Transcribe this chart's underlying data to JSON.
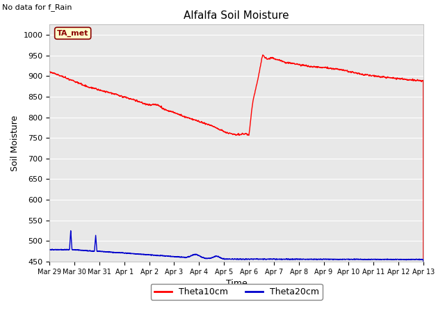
{
  "title": "Alfalfa Soil Moisture",
  "subtitle": "No data for f_Rain",
  "ylabel": "Soil Moisture",
  "xlabel": "Time",
  "legend_label1": "Theta10cm",
  "legend_label2": "Theta20cm",
  "tag_label": "TA_met",
  "fig_bg_color": "#ffffff",
  "plot_bg_color": "#e8e8e8",
  "ylim": [
    450,
    1025
  ],
  "yticks": [
    450,
    500,
    550,
    600,
    650,
    700,
    750,
    800,
    850,
    900,
    950,
    1000
  ],
  "color_red": "#ff0000",
  "color_blue": "#0000cc",
  "line_width": 1.0
}
